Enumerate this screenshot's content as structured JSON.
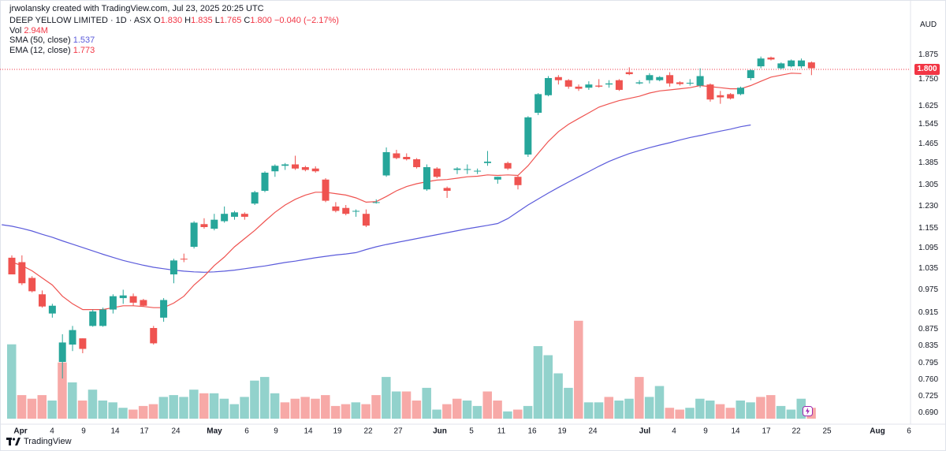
{
  "header": {
    "credit": "jrwolansky created with TradingView.com, Jul 23, 2025 20:25 UTC",
    "symbol": "DEEP YELLOW LIMITED · 1D · ASX",
    "ohlc": {
      "o_label": "O",
      "o": "1.830",
      "h_label": "H",
      "h": "1.835",
      "l_label": "L",
      "l": "1.765",
      "c_label": "C",
      "c": "1.800",
      "change": "−0.040 (−2.17%)"
    },
    "vol_label": "Vol",
    "vol_value": "2.94M",
    "sma_label": "SMA (50, close)",
    "sma_value": "1.537",
    "ema_label": "EMA (12, close)",
    "ema_value": "1.773"
  },
  "currency": "AUD",
  "last_price_label": "1.800",
  "brand": "TradingView",
  "colors": {
    "up": "#26a69a",
    "down": "#ef5350",
    "vol_up": "#92d2cc",
    "vol_down": "#f7a9a7",
    "sma": "#5b5bdb",
    "ema": "#ef5350"
  },
  "chart_data": {
    "type": "candlestick",
    "y_axis_ticks": [
      "1.875",
      "1.750",
      "1.625",
      "1.545",
      "1.465",
      "1.385",
      "1.305",
      "1.230",
      "1.155",
      "1.095",
      "1.035",
      "0.975",
      "0.915",
      "0.875",
      "0.835",
      "0.795",
      "0.760",
      "0.725",
      "0.690"
    ],
    "x_axis_ticks": [
      "Apr",
      "4",
      "9",
      "14",
      "17",
      "24",
      "May",
      "6",
      "9",
      "14",
      "19",
      "22",
      "27",
      "Jun",
      "5",
      "11",
      "16",
      "19",
      "24",
      "Jul",
      "4",
      "9",
      "14",
      "17",
      "22",
      "25",
      "Aug",
      "6"
    ],
    "candles": [
      {
        "o": 1.063,
        "h": 1.07,
        "l": 1.015,
        "c": 1.015
      },
      {
        "o": 1.05,
        "h": 1.07,
        "l": 0.985,
        "c": 0.99
      },
      {
        "o": 1.005,
        "h": 1.01,
        "l": 0.965,
        "c": 0.968
      },
      {
        "o": 0.96,
        "h": 0.97,
        "l": 0.925,
        "c": 0.928
      },
      {
        "o": 0.91,
        "h": 0.935,
        "l": 0.9,
        "c": 0.93
      },
      {
        "o": 0.795,
        "h": 0.86,
        "l": 0.76,
        "c": 0.84
      },
      {
        "o": 0.835,
        "h": 0.88,
        "l": 0.82,
        "c": 0.87
      },
      {
        "o": 0.85,
        "h": 0.85,
        "l": 0.815,
        "c": 0.825
      },
      {
        "o": 0.88,
        "h": 0.92,
        "l": 0.878,
        "c": 0.915
      },
      {
        "o": 0.88,
        "h": 0.925,
        "l": 0.878,
        "c": 0.92
      },
      {
        "o": 0.92,
        "h": 0.96,
        "l": 0.91,
        "c": 0.955
      },
      {
        "o": 0.95,
        "h": 0.972,
        "l": 0.935,
        "c": 0.957
      },
      {
        "o": 0.955,
        "h": 0.962,
        "l": 0.93,
        "c": 0.938
      },
      {
        "o": 0.945,
        "h": 0.948,
        "l": 0.928,
        "c": 0.93
      },
      {
        "o": 0.875,
        "h": 0.88,
        "l": 0.835,
        "c": 0.838
      },
      {
        "o": 0.9,
        "h": 0.95,
        "l": 0.89,
        "c": 0.945
      },
      {
        "o": 1.015,
        "h": 1.06,
        "l": 0.99,
        "c": 1.055
      },
      {
        "o": 1.06,
        "h": 1.075,
        "l": 1.05,
        "c": 1.058
      },
      {
        "o": 1.095,
        "h": 1.175,
        "l": 1.09,
        "c": 1.17
      },
      {
        "o": 1.165,
        "h": 1.185,
        "l": 1.15,
        "c": 1.155
      },
      {
        "o": 1.15,
        "h": 1.2,
        "l": 1.145,
        "c": 1.18
      },
      {
        "o": 1.175,
        "h": 1.225,
        "l": 1.17,
        "c": 1.2
      },
      {
        "o": 1.19,
        "h": 1.21,
        "l": 1.18,
        "c": 1.205
      },
      {
        "o": 1.2,
        "h": 1.205,
        "l": 1.18,
        "c": 1.19
      },
      {
        "o": 1.235,
        "h": 1.28,
        "l": 1.23,
        "c": 1.275
      },
      {
        "o": 1.28,
        "h": 1.35,
        "l": 1.275,
        "c": 1.345
      },
      {
        "o": 1.35,
        "h": 1.375,
        "l": 1.33,
        "c": 1.37
      },
      {
        "o": 1.37,
        "h": 1.38,
        "l": 1.355,
        "c": 1.375
      },
      {
        "o": 1.375,
        "h": 1.41,
        "l": 1.355,
        "c": 1.36
      },
      {
        "o": 1.365,
        "h": 1.37,
        "l": 1.35,
        "c": 1.355
      },
      {
        "o": 1.36,
        "h": 1.368,
        "l": 1.345,
        "c": 1.35
      },
      {
        "o": 1.32,
        "h": 1.325,
        "l": 1.24,
        "c": 1.245
      },
      {
        "o": 1.225,
        "h": 1.24,
        "l": 1.205,
        "c": 1.21
      },
      {
        "o": 1.22,
        "h": 1.23,
        "l": 1.195,
        "c": 1.2
      },
      {
        "o": 1.21,
        "h": 1.215,
        "l": 1.19,
        "c": 1.21
      },
      {
        "o": 1.2,
        "h": 1.215,
        "l": 1.155,
        "c": 1.16
      },
      {
        "o": 1.24,
        "h": 1.25,
        "l": 1.235,
        "c": 1.24
      },
      {
        "o": 1.335,
        "h": 1.445,
        "l": 1.33,
        "c": 1.425
      },
      {
        "o": 1.42,
        "h": 1.435,
        "l": 1.395,
        "c": 1.4
      },
      {
        "o": 1.405,
        "h": 1.42,
        "l": 1.39,
        "c": 1.395
      },
      {
        "o": 1.395,
        "h": 1.4,
        "l": 1.36,
        "c": 1.365
      },
      {
        "o": 1.285,
        "h": 1.375,
        "l": 1.28,
        "c": 1.365
      },
      {
        "o": 1.36,
        "h": 1.365,
        "l": 1.325,
        "c": 1.33
      },
      {
        "o": 1.29,
        "h": 1.295,
        "l": 1.255,
        "c": 1.28
      },
      {
        "o": 1.355,
        "h": 1.365,
        "l": 1.34,
        "c": 1.36
      },
      {
        "o": 1.355,
        "h": 1.375,
        "l": 1.34,
        "c": 1.358
      },
      {
        "o": 1.35,
        "h": 1.36,
        "l": 1.34,
        "c": 1.352
      },
      {
        "o": 1.38,
        "h": 1.43,
        "l": 1.37,
        "c": 1.385
      },
      {
        "o": 1.32,
        "h": 1.33,
        "l": 1.305,
        "c": 1.33
      },
      {
        "o": 1.38,
        "h": 1.385,
        "l": 1.355,
        "c": 1.36
      },
      {
        "o": 1.33,
        "h": 1.335,
        "l": 1.285,
        "c": 1.3
      },
      {
        "o": 1.415,
        "h": 1.575,
        "l": 1.405,
        "c": 1.57
      },
      {
        "o": 1.59,
        "h": 1.68,
        "l": 1.58,
        "c": 1.675
      },
      {
        "o": 1.67,
        "h": 1.76,
        "l": 1.665,
        "c": 1.75
      },
      {
        "o": 1.755,
        "h": 1.765,
        "l": 1.72,
        "c": 1.74
      },
      {
        "o": 1.74,
        "h": 1.745,
        "l": 1.7,
        "c": 1.71
      },
      {
        "o": 1.71,
        "h": 1.72,
        "l": 1.69,
        "c": 1.7
      },
      {
        "o": 1.705,
        "h": 1.735,
        "l": 1.695,
        "c": 1.72
      },
      {
        "o": 1.715,
        "h": 1.745,
        "l": 1.705,
        "c": 1.71
      },
      {
        "o": 1.72,
        "h": 1.74,
        "l": 1.705,
        "c": 1.725
      },
      {
        "o": 1.74,
        "h": 1.745,
        "l": 1.69,
        "c": 1.695
      },
      {
        "o": 1.78,
        "h": 1.805,
        "l": 1.765,
        "c": 1.77
      },
      {
        "o": 1.725,
        "h": 1.74,
        "l": 1.72,
        "c": 1.73
      },
      {
        "o": 1.74,
        "h": 1.775,
        "l": 1.725,
        "c": 1.765
      },
      {
        "o": 1.74,
        "h": 1.76,
        "l": 1.735,
        "c": 1.755
      },
      {
        "o": 1.765,
        "h": 1.78,
        "l": 1.71,
        "c": 1.725
      },
      {
        "o": 1.73,
        "h": 1.735,
        "l": 1.715,
        "c": 1.722
      },
      {
        "o": 1.725,
        "h": 1.745,
        "l": 1.715,
        "c": 1.728
      },
      {
        "o": 1.715,
        "h": 1.8,
        "l": 1.705,
        "c": 1.76
      },
      {
        "o": 1.72,
        "h": 1.725,
        "l": 1.64,
        "c": 1.65
      },
      {
        "o": 1.67,
        "h": 1.69,
        "l": 1.63,
        "c": 1.66
      },
      {
        "o": 1.675,
        "h": 1.68,
        "l": 1.65,
        "c": 1.655
      },
      {
        "o": 1.675,
        "h": 1.71,
        "l": 1.67,
        "c": 1.705
      },
      {
        "o": 1.75,
        "h": 1.795,
        "l": 1.74,
        "c": 1.79
      },
      {
        "o": 1.81,
        "h": 1.86,
        "l": 1.8,
        "c": 1.85
      },
      {
        "o": 1.855,
        "h": 1.86,
        "l": 1.84,
        "c": 1.845
      },
      {
        "o": 1.8,
        "h": 1.83,
        "l": 1.795,
        "c": 1.825
      },
      {
        "o": 1.81,
        "h": 1.845,
        "l": 1.805,
        "c": 1.84
      },
      {
        "o": 1.81,
        "h": 1.85,
        "l": 1.8,
        "c": 1.84
      },
      {
        "o": 1.83,
        "h": 1.835,
        "l": 1.765,
        "c": 1.8
      }
    ],
    "volume": [
      {
        "v": 4.1,
        "up": true
      },
      {
        "v": 1.3,
        "up": false
      },
      {
        "v": 1.1,
        "up": false
      },
      {
        "v": 1.3,
        "up": false
      },
      {
        "v": 1.0,
        "up": true
      },
      {
        "v": 3.1,
        "up": false
      },
      {
        "v": 2.0,
        "up": true
      },
      {
        "v": 1.0,
        "up": false
      },
      {
        "v": 1.6,
        "up": true
      },
      {
        "v": 1.0,
        "up": true
      },
      {
        "v": 0.9,
        "up": true
      },
      {
        "v": 0.6,
        "up": true
      },
      {
        "v": 0.5,
        "up": false
      },
      {
        "v": 0.7,
        "up": false
      },
      {
        "v": 0.8,
        "up": false
      },
      {
        "v": 1.2,
        "up": true
      },
      {
        "v": 1.3,
        "up": true
      },
      {
        "v": 1.2,
        "up": true
      },
      {
        "v": 1.6,
        "up": true
      },
      {
        "v": 1.4,
        "up": false
      },
      {
        "v": 1.4,
        "up": true
      },
      {
        "v": 1.1,
        "up": true
      },
      {
        "v": 0.8,
        "up": true
      },
      {
        "v": 1.2,
        "up": true
      },
      {
        "v": 2.1,
        "up": true
      },
      {
        "v": 2.3,
        "up": true
      },
      {
        "v": 1.4,
        "up": true
      },
      {
        "v": 0.9,
        "up": false
      },
      {
        "v": 1.1,
        "up": false
      },
      {
        "v": 1.2,
        "up": false
      },
      {
        "v": 1.1,
        "up": false
      },
      {
        "v": 1.3,
        "up": false
      },
      {
        "v": 0.7,
        "up": false
      },
      {
        "v": 0.8,
        "up": false
      },
      {
        "v": 0.9,
        "up": true
      },
      {
        "v": 0.8,
        "up": false
      },
      {
        "v": 1.3,
        "up": false
      },
      {
        "v": 2.3,
        "up": true
      },
      {
        "v": 1.5,
        "up": true
      },
      {
        "v": 1.5,
        "up": false
      },
      {
        "v": 1.0,
        "up": false
      },
      {
        "v": 1.7,
        "up": true
      },
      {
        "v": 0.5,
        "up": true
      },
      {
        "v": 0.8,
        "up": false
      },
      {
        "v": 1.1,
        "up": false
      },
      {
        "v": 1.0,
        "up": true
      },
      {
        "v": 0.7,
        "up": true
      },
      {
        "v": 1.5,
        "up": false
      },
      {
        "v": 1.0,
        "up": false
      },
      {
        "v": 0.4,
        "up": true
      },
      {
        "v": 0.5,
        "up": false
      },
      {
        "v": 0.7,
        "up": true
      },
      {
        "v": 4.0,
        "up": true
      },
      {
        "v": 3.5,
        "up": true
      },
      {
        "v": 2.5,
        "up": true
      },
      {
        "v": 1.7,
        "up": true
      },
      {
        "v": 5.4,
        "up": false
      },
      {
        "v": 0.9,
        "up": true
      },
      {
        "v": 0.9,
        "up": true
      },
      {
        "v": 1.2,
        "up": false
      },
      {
        "v": 1.0,
        "up": true
      },
      {
        "v": 1.1,
        "up": true
      },
      {
        "v": 2.3,
        "up": false
      },
      {
        "v": 1.2,
        "up": true
      },
      {
        "v": 1.8,
        "up": true
      },
      {
        "v": 0.6,
        "up": false
      },
      {
        "v": 0.5,
        "up": false
      },
      {
        "v": 0.6,
        "up": true
      },
      {
        "v": 1.1,
        "up": true
      },
      {
        "v": 1.0,
        "up": true
      },
      {
        "v": 0.8,
        "up": false
      },
      {
        "v": 0.6,
        "up": false
      },
      {
        "v": 1.0,
        "up": true
      },
      {
        "v": 0.9,
        "up": true
      },
      {
        "v": 1.2,
        "up": false
      },
      {
        "v": 1.3,
        "up": false
      },
      {
        "v": 0.7,
        "up": true
      },
      {
        "v": 0.5,
        "up": true
      },
      {
        "v": 1.1,
        "up": true
      },
      {
        "v": 0.6,
        "up": false
      }
    ],
    "sma_50": [
      1.163,
      1.158,
      1.151,
      1.143,
      1.133,
      1.124,
      1.113,
      1.103,
      1.093,
      1.083,
      1.073,
      1.064,
      1.055,
      1.048,
      1.041,
      1.035,
      1.031,
      1.027,
      1.024,
      1.022,
      1.021,
      1.022,
      1.024,
      1.027,
      1.031,
      1.035,
      1.039,
      1.044,
      1.049,
      1.053,
      1.058,
      1.063,
      1.067,
      1.071,
      1.074,
      1.078,
      1.087,
      1.095,
      1.102,
      1.108,
      1.114,
      1.12,
      1.126,
      1.132,
      1.138,
      1.144,
      1.15,
      1.155,
      1.161,
      1.167,
      1.184,
      1.207,
      1.23,
      1.251,
      1.272,
      1.292,
      1.311,
      1.33,
      1.349,
      1.368,
      1.386,
      1.403,
      1.419,
      1.432,
      1.444,
      1.455,
      1.465,
      1.476,
      1.486,
      1.494,
      1.503,
      1.512,
      1.52,
      1.53,
      1.537
    ],
    "ema_12": [
      1.05,
      1.04,
      1.025,
      1.005,
      0.985,
      0.955,
      0.935,
      0.92,
      0.92,
      0.92,
      0.925,
      0.93,
      0.93,
      0.928,
      0.925,
      0.925,
      0.937,
      0.955,
      0.985,
      1.01,
      1.04,
      1.065,
      1.095,
      1.12,
      1.145,
      1.175,
      1.205,
      1.23,
      1.25,
      1.265,
      1.275,
      1.275,
      1.27,
      1.265,
      1.255,
      1.24,
      1.242,
      1.26,
      1.28,
      1.295,
      1.305,
      1.312,
      1.318,
      1.32,
      1.325,
      1.33,
      1.332,
      1.337,
      1.335,
      1.337,
      1.335,
      1.37,
      1.42,
      1.47,
      1.51,
      1.54,
      1.565,
      1.59,
      1.615,
      1.63,
      1.645,
      1.655,
      1.665,
      1.68,
      1.69,
      1.695,
      1.7,
      1.705,
      1.715,
      1.71,
      1.705,
      1.7,
      1.7,
      1.715,
      1.735,
      1.755,
      1.765,
      1.775,
      1.773
    ]
  }
}
